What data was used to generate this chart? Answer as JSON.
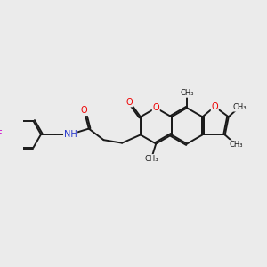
{
  "bg_color": "#ebebeb",
  "bond_color": "#1a1a1a",
  "bond_width": 1.4,
  "dbo": 0.055,
  "figsize": [
    3.0,
    3.0
  ],
  "dpi": 100,
  "colors": {
    "O": "#ee0000",
    "N": "#2233cc",
    "F": "#cc00cc",
    "C": "#1a1a1a"
  },
  "fs": 7.0,
  "fs_me": 6.0,
  "xlim": [
    -0.5,
    9.0
  ],
  "ylim": [
    -0.2,
    4.5
  ]
}
